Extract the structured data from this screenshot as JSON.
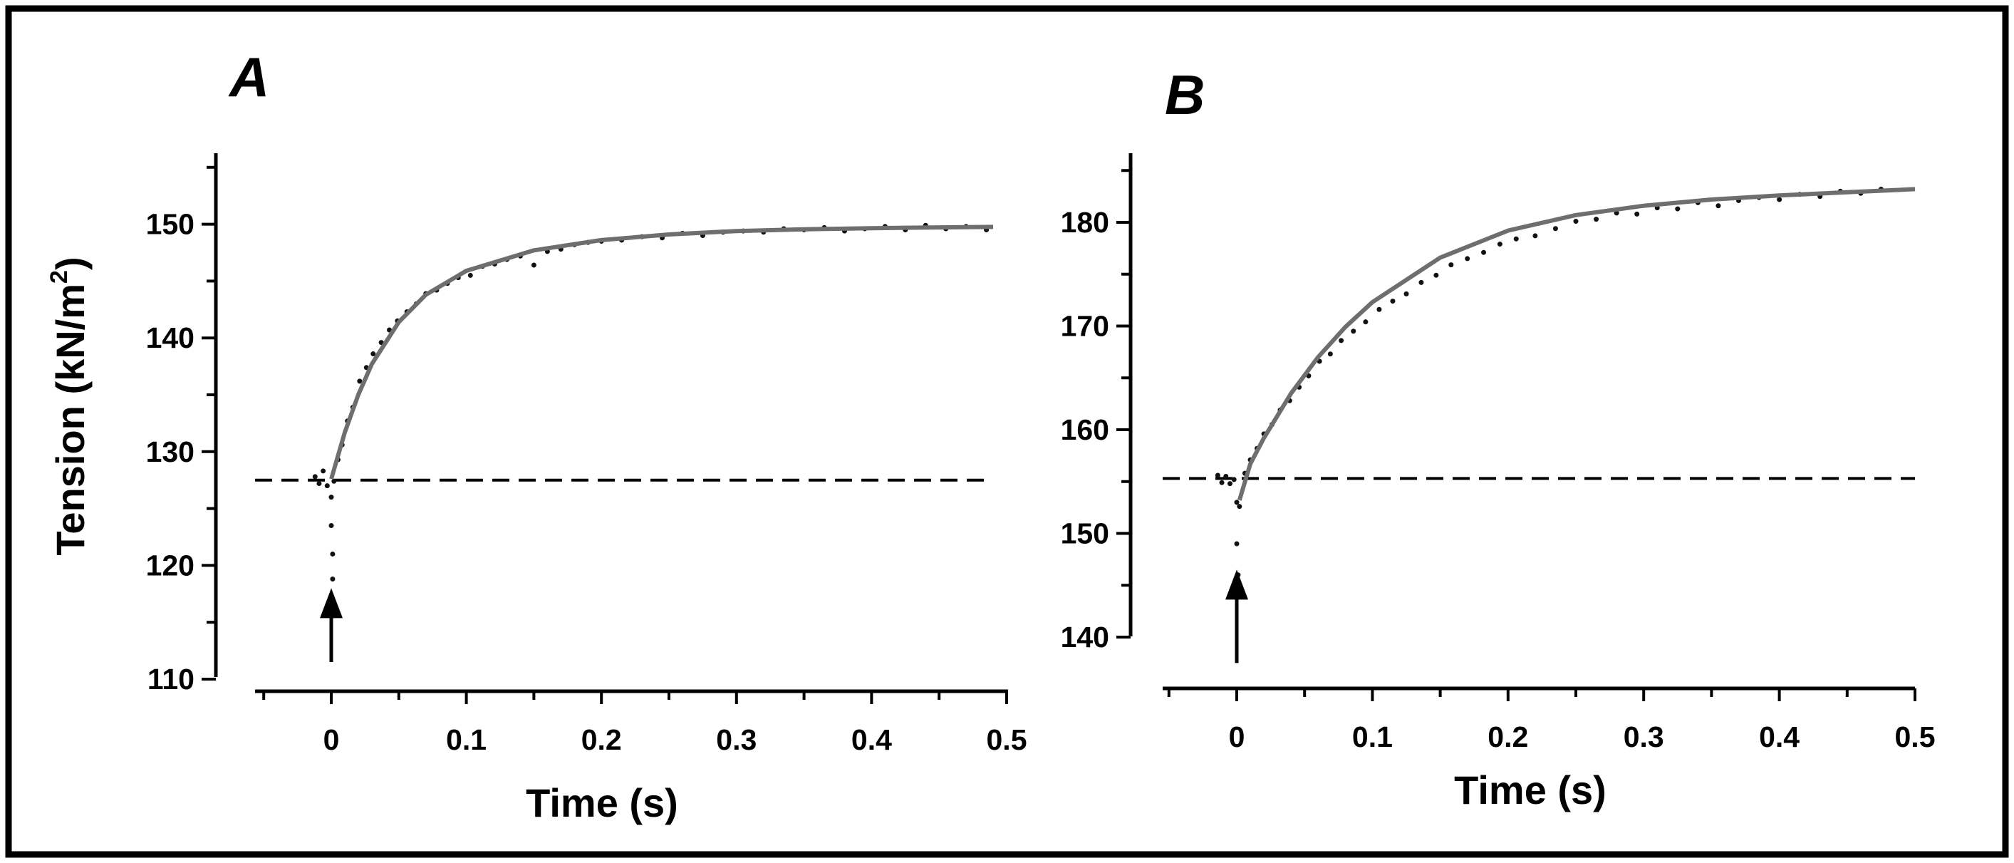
{
  "chart_data": [
    {
      "type": "scatter",
      "panel_label": "A",
      "xlabel": "Time (s)",
      "ylabel": "Tension (kN/m",
      "ylabel_superscript": "2",
      "ylabel_suffix": ")",
      "xlim": [
        -0.055,
        0.5
      ],
      "ylim": [
        110,
        156
      ],
      "xticks": [
        0,
        0.1,
        0.2,
        0.3,
        0.4,
        0.5
      ],
      "xtick_labels": [
        "0",
        "0.1",
        "0.2",
        "0.3",
        "0.4",
        "0.5"
      ],
      "yticks": [
        110,
        120,
        130,
        140,
        150
      ],
      "ytick_labels": [
        "110",
        "120",
        "130",
        "140",
        "150"
      ],
      "baseline_tension": 127.5,
      "stimulus_time": 0,
      "arrow_tip_tension": 118,
      "arrow_tail_tension": 111.5,
      "fit_curve": {
        "t": [
          0,
          0.01,
          0.02,
          0.03,
          0.05,
          0.07,
          0.1,
          0.15,
          0.2,
          0.25,
          0.3,
          0.35,
          0.4,
          0.45,
          0.49
        ],
        "tension": [
          127.6,
          131.7,
          135.0,
          137.7,
          141.4,
          143.8,
          145.9,
          147.7,
          148.6,
          149.1,
          149.4,
          149.55,
          149.65,
          149.72,
          149.76
        ]
      },
      "points": {
        "t": [
          -0.012,
          -0.009,
          -0.006,
          -0.003,
          0.0,
          0.0,
          0.001,
          0.001,
          0.002,
          0.005,
          0.008,
          0.012,
          0.016,
          0.021,
          0.026,
          0.031,
          0.037,
          0.043,
          0.049,
          0.056,
          0.063,
          0.07,
          0.078,
          0.086,
          0.094,
          0.103,
          0.112,
          0.121,
          0.13,
          0.14,
          0.15,
          0.16,
          0.17,
          0.18,
          0.19,
          0.2,
          0.215,
          0.23,
          0.245,
          0.26,
          0.275,
          0.29,
          0.305,
          0.32,
          0.335,
          0.35,
          0.365,
          0.38,
          0.395,
          0.41,
          0.425,
          0.44,
          0.455,
          0.47,
          0.485
        ],
        "tension": [
          127.8,
          127.2,
          128.3,
          127.0,
          126.0,
          123.5,
          121.0,
          118.8,
          127.4,
          129.3,
          130.6,
          132.7,
          133.9,
          136.2,
          137.4,
          138.6,
          139.6,
          140.7,
          141.5,
          142.3,
          143.0,
          143.9,
          144.2,
          144.8,
          145.3,
          145.5,
          146.3,
          146.5,
          146.9,
          147.2,
          146.4,
          147.6,
          147.8,
          148.2,
          148.4,
          148.5,
          148.6,
          148.9,
          148.8,
          149.2,
          149.0,
          149.3,
          149.4,
          149.3,
          149.6,
          149.5,
          149.7,
          149.4,
          149.6,
          149.8,
          149.5,
          149.9,
          149.6,
          149.8,
          149.5
        ]
      }
    },
    {
      "type": "scatter",
      "panel_label": "B",
      "xlabel": "Time (s)",
      "xlim": [
        -0.055,
        0.5
      ],
      "ylim": [
        140,
        186
      ],
      "xticks": [
        0,
        0.1,
        0.2,
        0.3,
        0.4,
        0.5
      ],
      "xtick_labels": [
        "0",
        "0.1",
        "0.2",
        "0.3",
        "0.4",
        "0.5"
      ],
      "yticks": [
        140,
        150,
        160,
        170,
        180
      ],
      "ytick_labels": [
        "140",
        "150",
        "160",
        "170",
        "180"
      ],
      "baseline_tension": 155.3,
      "stimulus_time": 0,
      "arrow_tip_tension": 146.5,
      "arrow_tail_tension": 137.5,
      "fit_curve": {
        "t": [
          0.002,
          0.01,
          0.02,
          0.04,
          0.06,
          0.08,
          0.1,
          0.15,
          0.2,
          0.25,
          0.3,
          0.35,
          0.4,
          0.45,
          0.5
        ],
        "tension": [
          153.2,
          156.7,
          159.2,
          163.5,
          167.0,
          169.9,
          172.3,
          176.6,
          179.2,
          180.7,
          181.6,
          182.2,
          182.6,
          182.9,
          183.2
        ]
      },
      "points": {
        "t": [
          -0.014,
          -0.011,
          -0.008,
          -0.005,
          -0.002,
          0.0,
          0.0,
          0.001,
          0.002,
          0.006,
          0.01,
          0.015,
          0.02,
          0.026,
          0.032,
          0.039,
          0.046,
          0.053,
          0.061,
          0.069,
          0.077,
          0.086,
          0.095,
          0.105,
          0.115,
          0.125,
          0.136,
          0.147,
          0.158,
          0.17,
          0.182,
          0.194,
          0.206,
          0.22,
          0.235,
          0.25,
          0.265,
          0.28,
          0.295,
          0.31,
          0.325,
          0.34,
          0.355,
          0.37,
          0.385,
          0.4,
          0.415,
          0.43,
          0.445,
          0.46,
          0.475
        ],
        "tension": [
          155.6,
          154.9,
          155.5,
          154.8,
          155.2,
          153.0,
          149.0,
          146.0,
          152.6,
          155.8,
          157.1,
          158.2,
          159.6,
          160.5,
          161.9,
          162.8,
          164.1,
          165.2,
          166.6,
          167.3,
          168.6,
          169.5,
          170.4,
          171.6,
          172.4,
          173.1,
          174.2,
          174.9,
          175.9,
          176.5,
          177.1,
          177.9,
          178.4,
          178.7,
          179.4,
          180.1,
          180.3,
          180.9,
          180.8,
          181.4,
          181.3,
          181.9,
          181.6,
          182.1,
          182.4,
          182.2,
          182.7,
          182.5,
          183.0,
          182.8,
          183.2
        ]
      }
    }
  ]
}
